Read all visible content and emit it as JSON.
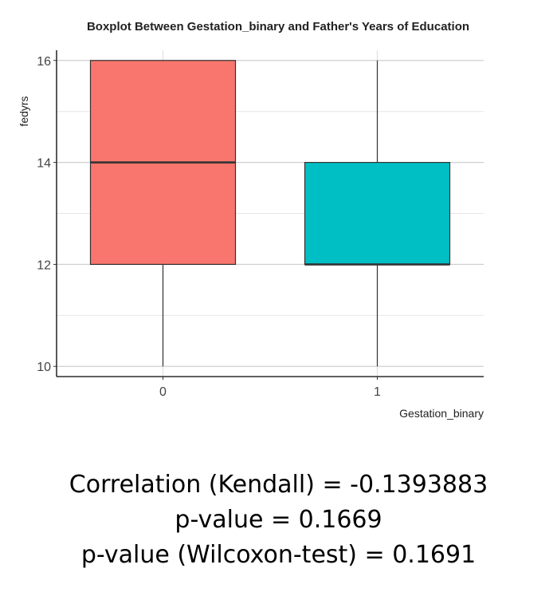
{
  "chart_data": {
    "type": "boxplot",
    "title": "Boxplot Between Gestation_binary and Father's Years of Education",
    "xlabel": "Gestation_binary",
    "ylabel": "fedyrs",
    "categories": [
      "0",
      "1"
    ],
    "ylim": [
      9.8,
      16.2
    ],
    "yticks": [
      10,
      12,
      14,
      16
    ],
    "grid": true,
    "legend": "none",
    "series": [
      {
        "category": "0",
        "min": 10,
        "q1": 12,
        "median": 14,
        "q3": 16,
        "max": 16,
        "color": "#F8766D"
      },
      {
        "category": "1",
        "min": 10,
        "q1": 12,
        "median": 12,
        "q3": 14,
        "max": 16,
        "color": "#00BFC4"
      }
    ]
  },
  "stats": {
    "kendall": "Correlation (Kendall) = -0.1393883",
    "pvalue": "p-value = 0.1669",
    "wilcoxon": "p-value (Wilcoxon-test) = 0.1691"
  }
}
